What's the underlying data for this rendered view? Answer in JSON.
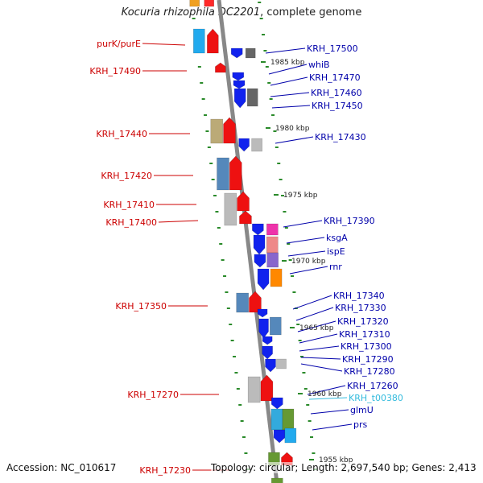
{
  "title": {
    "organism": "Kocuria rhizophila DC2201",
    "suffix": ", complete genome"
  },
  "footer": {
    "accession": "Accession: NC_010617",
    "topology": "Topology: circular; Length: 2,697,540 bp; Genes: 2,413"
  },
  "colors": {
    "left_label": "#cc0000",
    "right_label": "#0000aa",
    "trna_label": "#33bbdd",
    "backbone": "#888888",
    "tick": "#2a8a2a"
  },
  "scale_labels": [
    "1985 kbp",
    "1980 kbp",
    "1975 kbp",
    "1970 kbp",
    "1965 kbp",
    "1960 kbp",
    "1955 kbp"
  ],
  "left_labels": [
    "purK/purE",
    "KRH_17490",
    "KRH_17440",
    "KRH_17420",
    "KRH_17410",
    "KRH_17400",
    "KRH_17350",
    "KRH_17270",
    "KRH_17230"
  ],
  "right_labels": [
    {
      "text": "KRH_17500",
      "kind": "gene"
    },
    {
      "text": "whiB",
      "kind": "gene"
    },
    {
      "text": "KRH_17470",
      "kind": "gene"
    },
    {
      "text": "KRH_17460",
      "kind": "gene"
    },
    {
      "text": "KRH_17450",
      "kind": "gene"
    },
    {
      "text": "KRH_17430",
      "kind": "gene"
    },
    {
      "text": "KRH_17390",
      "kind": "gene"
    },
    {
      "text": "ksgA",
      "kind": "gene"
    },
    {
      "text": "ispE",
      "kind": "gene"
    },
    {
      "text": "rnr",
      "kind": "gene"
    },
    {
      "text": "KRH_17340",
      "kind": "gene"
    },
    {
      "text": "KRH_17330",
      "kind": "gene"
    },
    {
      "text": "KRH_17320",
      "kind": "gene"
    },
    {
      "text": "KRH_17310",
      "kind": "gene"
    },
    {
      "text": "KRH_17300",
      "kind": "gene"
    },
    {
      "text": "KRH_17290",
      "kind": "gene"
    },
    {
      "text": "KRH_17280",
      "kind": "gene"
    },
    {
      "text": "KRH_17260",
      "kind": "gene"
    },
    {
      "text": "KRH_t00380",
      "kind": "trna"
    },
    {
      "text": "glmU",
      "kind": "gene"
    },
    {
      "text": "prs",
      "kind": "gene"
    }
  ]
}
